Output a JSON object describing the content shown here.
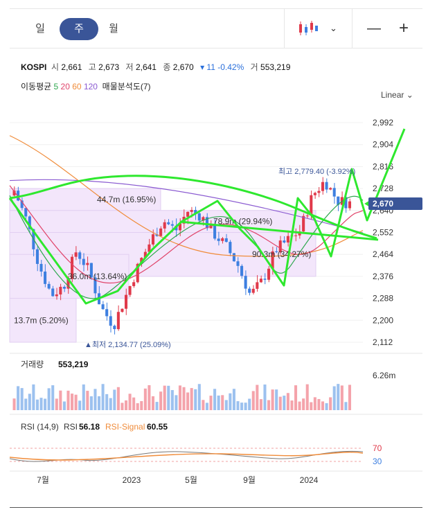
{
  "tabs": [
    {
      "label": "일"
    },
    {
      "label": "주"
    },
    {
      "label": "월"
    }
  ],
  "active_tab": "주",
  "toolbar": {
    "chart_type_icon": "candlestick-icon",
    "zoom_out": "—",
    "zoom_in": "+"
  },
  "info": {
    "name": "KOSPI",
    "open_label": "시",
    "open": "2,661",
    "high_label": "고",
    "high": "2,673",
    "low_label": "저",
    "low": "2,641",
    "close_label": "종",
    "close": "2,670",
    "change": "▾ 11",
    "change_pct": "-0.42%",
    "volume_label": "거",
    "volume": "553,219"
  },
  "ma": {
    "label": "이동평균",
    "p5": "5",
    "p20": "20",
    "p60": "60",
    "p120": "120",
    "profile": "매물분석도(7)",
    "colors": {
      "p5": "#2fa84f",
      "p20": "#e0456b",
      "p60": "#f08c3a",
      "p120": "#8a5ad1"
    }
  },
  "scale": {
    "label": "Linear"
  },
  "price_axis": [
    "2,992",
    "2,904",
    "2,816",
    "2,728",
    "2,640",
    "2,552",
    "2,464",
    "2,376",
    "2,288",
    "2,200",
    "2,112"
  ],
  "current_price": "2,670",
  "annotations": {
    "high": "최고 2,779.40 (-3.92%)",
    "low": "▲최저 2,134.77 (25.09%)",
    "profile": [
      "44.7m (16.95%)",
      "78.9m (29.94%)",
      "90.3m (34.27%)",
      "36.0m (13.64%)",
      "13.7m (5.20%)"
    ]
  },
  "volume_panel": {
    "label": "거래량",
    "value": "553,219",
    "axis": "6.26m"
  },
  "rsi_panel": {
    "label": "RSI (14,9)",
    "rsi_label": "RSI",
    "rsi_value": "56.18",
    "signal_label": "RSI-Signal",
    "signal_value": "60.55",
    "levels": [
      "70",
      "30"
    ]
  },
  "x_axis": [
    "7월",
    "2023",
    "5월",
    "9월",
    "2024"
  ],
  "colors": {
    "up": "#e0394a",
    "down": "#3d7fe0",
    "accent": "#3a5598",
    "annotation_green": "#2ee82e"
  }
}
